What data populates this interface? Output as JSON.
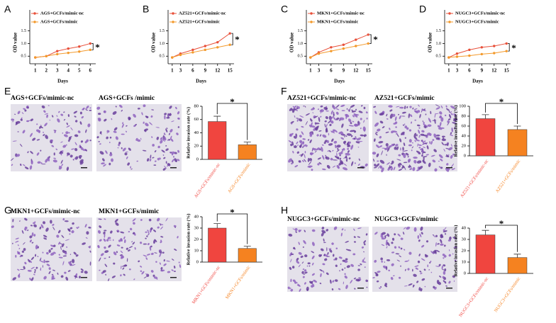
{
  "chart_data": [
    {
      "type": "line",
      "panel": "A",
      "x": [
        1,
        2,
        3,
        4,
        5,
        6
      ],
      "xlim": [
        0.5,
        6.5
      ],
      "xticks": [
        1,
        2,
        3,
        4,
        5,
        6
      ],
      "ylim": [
        0.2,
        1.6
      ],
      "yticks": [
        {
          "value": 0.5,
          "label": "0.5"
        },
        {
          "value": 1,
          "label": "1.0"
        },
        {
          "value": 1.5,
          "label": "1.5"
        }
      ],
      "xlabel": "Days",
      "ylabel": "OD value",
      "annotation": "*",
      "series": [
        {
          "name": "AGS+GCFs/mimic-nc",
          "color": "#e8503a",
          "values": [
            0.45,
            0.5,
            0.7,
            0.8,
            0.88,
            1.0
          ]
        },
        {
          "name": "AGS+GCFs/mimic",
          "color": "#f39a2c",
          "values": [
            0.45,
            0.5,
            0.58,
            0.63,
            0.68,
            0.75
          ]
        }
      ]
    },
    {
      "type": "line",
      "panel": "B",
      "x": [
        1,
        3,
        6,
        9,
        12,
        15
      ],
      "xlim": [
        0,
        16
      ],
      "xticks": [
        1,
        3,
        6,
        9,
        12,
        15
      ],
      "ylim": [
        0.2,
        1.6
      ],
      "yticks": [
        {
          "value": 0.5,
          "label": "0.5"
        },
        {
          "value": 1,
          "label": "1.0"
        },
        {
          "value": 1.5,
          "label": "1.5"
        }
      ],
      "xlabel": "Days",
      "ylabel": "OD value",
      "annotation": "*",
      "series": [
        {
          "name": "AZ521+GCFs/mimic-nc",
          "color": "#e8503a",
          "values": [
            0.45,
            0.6,
            0.75,
            0.9,
            1.05,
            1.4
          ]
        },
        {
          "name": "AZ521+GCFs/mimic",
          "color": "#f39a2c",
          "values": [
            0.45,
            0.55,
            0.65,
            0.75,
            0.85,
            0.95
          ]
        }
      ]
    },
    {
      "type": "line",
      "panel": "C",
      "x": [
        1,
        3,
        6,
        9,
        12,
        15
      ],
      "xlim": [
        0,
        16
      ],
      "xticks": [
        1,
        3,
        6,
        9,
        12,
        15
      ],
      "ylim": [
        0.2,
        1.6
      ],
      "yticks": [
        {
          "value": 0.5,
          "label": "0.5"
        },
        {
          "value": 1,
          "label": "1.0"
        },
        {
          "value": 1.5,
          "label": "1.5"
        }
      ],
      "xlabel": "Days",
      "ylabel": "OD value",
      "annotation": "*",
      "series": [
        {
          "name": "MKN1+GCFs/mimic-nc",
          "color": "#e8503a",
          "values": [
            0.45,
            0.65,
            0.85,
            0.95,
            1.15,
            1.35
          ]
        },
        {
          "name": "MKN1+GCFs/mimic",
          "color": "#f39a2c",
          "values": [
            0.45,
            0.6,
            0.7,
            0.8,
            0.9,
            1.0
          ]
        }
      ]
    },
    {
      "type": "line",
      "panel": "D",
      "x": [
        1,
        3,
        6,
        9,
        12,
        15
      ],
      "xlim": [
        0,
        16
      ],
      "xticks": [
        1,
        3,
        6,
        9,
        12,
        15
      ],
      "ylim": [
        0.2,
        1.6
      ],
      "yticks": [
        {
          "value": 0.5,
          "label": "0.5"
        },
        {
          "value": 1,
          "label": "1.0"
        },
        {
          "value": 1.5,
          "label": "1.5"
        }
      ],
      "xlabel": "Days",
      "ylabel": "OD value",
      "annotation": "*",
      "series": [
        {
          "name": "NUGC3+GCFs/mimic-nc",
          "color": "#e8503a",
          "values": [
            0.45,
            0.6,
            0.75,
            0.85,
            0.9,
            1.0
          ]
        },
        {
          "name": "NUGC3+GCFs/mimic",
          "color": "#f39a2c",
          "values": [
            0.45,
            0.48,
            0.52,
            0.58,
            0.62,
            0.7
          ]
        }
      ]
    },
    {
      "type": "bar",
      "panel": "E",
      "image_titles": [
        "AGS+GCFs/mimic-nc",
        "AGS+GCFs /mimic"
      ],
      "categories": [
        "AGS+GCFs/mimic-nc",
        "AGS+GCFs/mimic"
      ],
      "values": [
        57,
        22
      ],
      "errors": [
        8,
        4
      ],
      "colors": [
        "#f0453f",
        "#f58220"
      ],
      "ylim": [
        0,
        80
      ],
      "yticks": [
        0,
        20,
        40,
        60,
        80
      ],
      "ylabel": "Relative invasion rate (%)",
      "annotation": "*"
    },
    {
      "type": "bar",
      "panel": "F",
      "image_titles": [
        "AZ521+GCFs/mimic-nc",
        "AZ521+GCFs/mimic"
      ],
      "categories": [
        "AZ521+GCFs/mimic-nc",
        "AZ521+GCFs/mimic"
      ],
      "values": [
        75,
        53
      ],
      "errors": [
        8,
        7
      ],
      "colors": [
        "#f0453f",
        "#f58220"
      ],
      "ylim": [
        0,
        100
      ],
      "yticks": [
        0,
        20,
        40,
        60,
        80,
        100
      ],
      "ylabel": "Relative invasion rate (%)",
      "annotation": "*"
    },
    {
      "type": "bar",
      "panel": "G",
      "image_titles": [
        "MKN1+GCFs/mimic-nc",
        "MKN1+GCFs/mimic"
      ],
      "categories": [
        "MKN1+GCFs/mimic-nc",
        "MKN1+GCFs/mimic"
      ],
      "values": [
        30,
        12
      ],
      "errors": [
        4,
        2
      ],
      "colors": [
        "#f0453f",
        "#f58220"
      ],
      "ylim": [
        0,
        40
      ],
      "yticks": [
        0,
        10,
        20,
        30,
        40
      ],
      "ylabel": "Relative invasion rate (%)",
      "annotation": "*"
    },
    {
      "type": "bar",
      "panel": "H",
      "image_titles": [
        "NUGC3+GCFs/mimic-nc",
        "NUGC3+GCFs/mimic"
      ],
      "categories": [
        "NUGC3+GCFs/mimic-nc",
        "NUGC3+GCFs/mimic"
      ],
      "values": [
        34,
        14
      ],
      "errors": [
        4,
        3
      ],
      "colors": [
        "#f0453f",
        "#f58220"
      ],
      "ylim": [
        0,
        40
      ],
      "yticks": [
        0,
        10,
        20,
        30,
        40
      ],
      "ylabel": "Relative invasion rate (%)",
      "annotation": "*"
    }
  ]
}
